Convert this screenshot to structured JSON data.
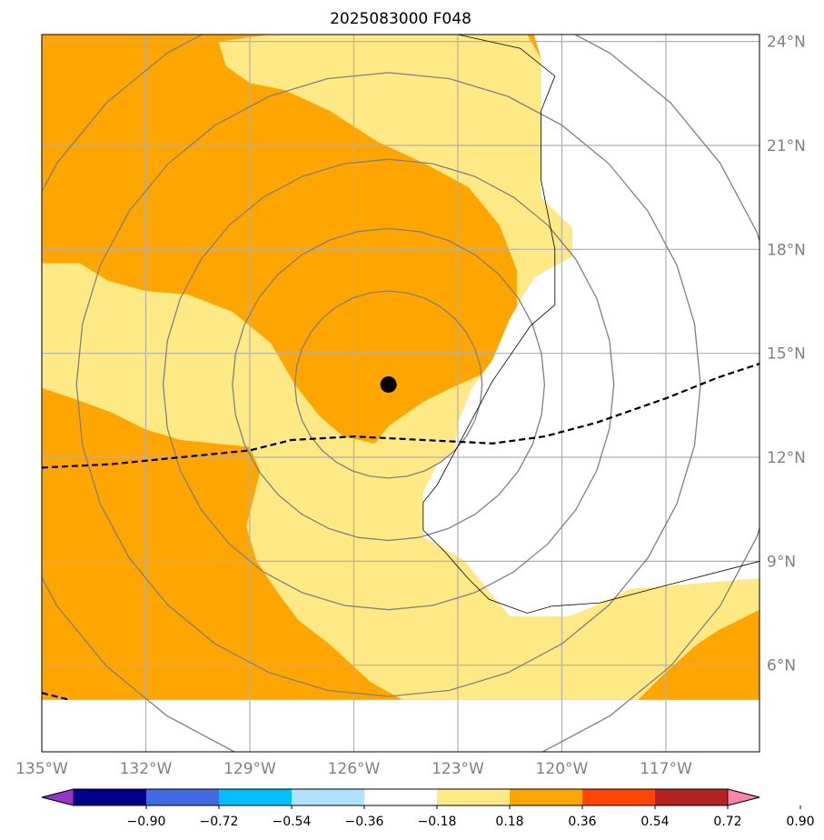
{
  "chart_data": {
    "type": "heatmap",
    "title": "2025083000 F048",
    "map": {
      "lon_range": [
        -135,
        -114.3
      ],
      "lat_range": [
        3.5,
        24.2
      ],
      "lon_ticks": [
        {
          "value": -135,
          "label": "135°W"
        },
        {
          "value": -132,
          "label": "132°W"
        },
        {
          "value": -129,
          "label": "129°W"
        },
        {
          "value": -126,
          "label": "126°W"
        },
        {
          "value": -123,
          "label": "123°W"
        },
        {
          "value": -120,
          "label": "120°W"
        },
        {
          "value": -117,
          "label": "117°W"
        }
      ],
      "lat_ticks": [
        {
          "value": 24,
          "label": "24°N"
        },
        {
          "value": 21,
          "label": "21°N"
        },
        {
          "value": 18,
          "label": "18°N"
        },
        {
          "value": 15,
          "label": "15°N"
        },
        {
          "value": 12,
          "label": "12°N"
        },
        {
          "value": 9,
          "label": "9°N"
        },
        {
          "value": 6,
          "label": "6°N"
        }
      ],
      "grid": true,
      "data_south_limit_lat": 5.0,
      "storm_center": {
        "lon": -125.0,
        "lat": 14.1
      },
      "range_rings_deg": [
        2.7,
        4.5,
        6.5,
        9.0,
        11.5
      ],
      "colors": {
        "orange_fill": "#ffa500",
        "yellow_fill": "#ffe985",
        "ring": "#808080",
        "grid": "#b0b0b0",
        "track": "#000000",
        "coast": "#000000"
      },
      "yellow_region": [
        [
          -129.9,
          24.0
        ],
        [
          -128.4,
          24.2
        ],
        [
          -121.0,
          24.2
        ],
        [
          -120.6,
          23.5
        ],
        [
          -120.6,
          19.5
        ],
        [
          -119.7,
          18.6
        ],
        [
          -119.7,
          17.8
        ],
        [
          -120.8,
          17.2
        ],
        [
          -121.5,
          16.0
        ],
        [
          -122.0,
          14.8
        ],
        [
          -122.6,
          14.0
        ],
        [
          -123.0,
          13.0
        ],
        [
          -123.1,
          12.2
        ],
        [
          -123.6,
          11.8
        ],
        [
          -124.0,
          11.0
        ],
        [
          -124.0,
          9.7
        ],
        [
          -122.8,
          9.0
        ],
        [
          -122.0,
          8.0
        ],
        [
          -121.5,
          7.4
        ],
        [
          -119.8,
          7.4
        ],
        [
          -119.3,
          7.6
        ],
        [
          -118.0,
          8.2
        ],
        [
          -114.3,
          8.5
        ],
        [
          -114.3,
          5.0
        ],
        [
          -124.6,
          5.0
        ],
        [
          -125.5,
          5.5
        ],
        [
          -126.7,
          6.6
        ],
        [
          -127.6,
          7.3
        ],
        [
          -128.2,
          8.1
        ],
        [
          -128.8,
          9.0
        ],
        [
          -129.1,
          10.0
        ],
        [
          -128.7,
          11.6
        ],
        [
          -129.0,
          12.3
        ],
        [
          -131.0,
          12.5
        ],
        [
          -132.0,
          12.8
        ],
        [
          -133.0,
          13.3
        ],
        [
          -134.1,
          13.7
        ],
        [
          -135.0,
          14.0
        ],
        [
          -135.0,
          17.6
        ],
        [
          -133.9,
          17.6
        ],
        [
          -133.1,
          17.1
        ],
        [
          -132.0,
          16.8
        ],
        [
          -130.8,
          16.7
        ],
        [
          -129.5,
          16.2
        ],
        [
          -128.4,
          15.3
        ],
        [
          -127.7,
          14.1
        ],
        [
          -127.0,
          13.2
        ],
        [
          -126.3,
          12.6
        ],
        [
          -125.4,
          12.4
        ],
        [
          -125.0,
          12.9
        ],
        [
          -124.0,
          13.6
        ],
        [
          -123.2,
          14.0
        ],
        [
          -122.3,
          14.4
        ],
        [
          -121.3,
          15.4
        ],
        [
          -121.3,
          17.4
        ],
        [
          -121.8,
          18.7
        ],
        [
          -122.7,
          19.8
        ],
        [
          -124.0,
          20.5
        ],
        [
          -125.3,
          21.1
        ],
        [
          -126.7,
          22.0
        ],
        [
          -128.0,
          22.6
        ],
        [
          -129.0,
          22.8
        ],
        [
          -129.7,
          23.3
        ]
      ],
      "se_orange_region": [
        [
          -114.3,
          7.6
        ],
        [
          -115.5,
          7.0
        ],
        [
          -116.1,
          6.6
        ],
        [
          -117.0,
          5.8
        ],
        [
          -117.8,
          5.0
        ],
        [
          -114.3,
          5.0
        ]
      ],
      "white_region": [
        [
          -120.8,
          24.2
        ],
        [
          -114.3,
          24.2
        ],
        [
          -114.3,
          8.5
        ],
        [
          -118.0,
          8.2
        ],
        [
          -119.3,
          7.6
        ],
        [
          -119.8,
          7.4
        ],
        [
          -121.5,
          7.4
        ],
        [
          -122.0,
          8.0
        ],
        [
          -122.8,
          9.0
        ],
        [
          -124.0,
          9.7
        ],
        [
          -124.0,
          11.0
        ],
        [
          -123.6,
          11.8
        ],
        [
          -123.1,
          12.2
        ],
        [
          -123.0,
          13.0
        ],
        [
          -122.6,
          14.0
        ],
        [
          -122.0,
          14.8
        ],
        [
          -121.5,
          16.0
        ],
        [
          -120.8,
          17.2
        ],
        [
          -119.7,
          17.8
        ],
        [
          -119.7,
          18.6
        ],
        [
          -120.6,
          19.5
        ],
        [
          -120.6,
          23.5
        ]
      ],
      "coastline": [
        [
          -123.0,
          24.2
        ],
        [
          -121.2,
          23.8
        ],
        [
          -120.2,
          23.0
        ],
        [
          -120.6,
          22.0
        ],
        [
          -120.6,
          20.0
        ],
        [
          -120.2,
          18.0
        ],
        [
          -120.2,
          16.4
        ],
        [
          -120.9,
          15.8
        ],
        [
          -122.0,
          14.2
        ],
        [
          -122.8,
          12.7
        ],
        [
          -123.6,
          11.2
        ],
        [
          -124.0,
          10.7
        ],
        [
          -124.0,
          9.9
        ],
        [
          -123.4,
          9.3
        ],
        [
          -122.7,
          8.5
        ],
        [
          -122.1,
          7.9
        ],
        [
          -121.0,
          7.5
        ],
        [
          -120.3,
          7.7
        ],
        [
          -118.9,
          7.8
        ],
        [
          -117.0,
          8.3
        ],
        [
          -114.3,
          9.0
        ]
      ],
      "track_line": [
        [
          -135.0,
          11.7
        ],
        [
          -133.0,
          11.8
        ],
        [
          -131.0,
          12.0
        ],
        [
          -129.0,
          12.2
        ],
        [
          -127.8,
          12.5
        ],
        [
          -126.0,
          12.6
        ],
        [
          -124.0,
          12.5
        ],
        [
          -122.0,
          12.4
        ],
        [
          -120.5,
          12.6
        ],
        [
          -119.0,
          13.0
        ],
        [
          -117.0,
          13.7
        ],
        [
          -115.5,
          14.3
        ],
        [
          -114.3,
          14.7
        ]
      ],
      "track_line_sw": [
        [
          -135.0,
          5.2
        ],
        [
          -134.2,
          5.0
        ]
      ]
    },
    "colorbar": {
      "colors": [
        "#9932cc",
        "#00008b",
        "#4169e1",
        "#00bfff",
        "#b0e2ff",
        "#ffffff",
        "#ffe985",
        "#ffa500",
        "#ff4500",
        "#b22222",
        "#ff82ab"
      ],
      "tick_labels": [
        "−0.90",
        "−0.72",
        "−0.54",
        "−0.36",
        "−0.18",
        "0.18",
        "0.36",
        "0.54",
        "0.72",
        "0.90"
      ],
      "extend": "both"
    }
  }
}
